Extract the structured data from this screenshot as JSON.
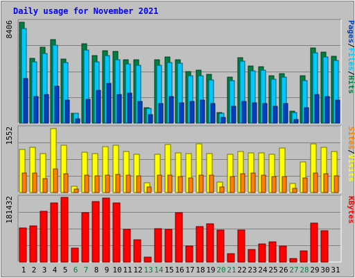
{
  "chart_data": {
    "type": "bar",
    "title": "Daily usage for November 2021",
    "categories": [
      "1",
      "2",
      "3",
      "4",
      "5",
      "6",
      "7",
      "8",
      "9",
      "10",
      "11",
      "12",
      "13",
      "14",
      "15",
      "16",
      "17",
      "18",
      "19",
      "20",
      "21",
      "22",
      "23",
      "24",
      "25",
      "26",
      "27",
      "28",
      "29",
      "30",
      "31"
    ],
    "weekend_days": [
      "6",
      "7",
      "13",
      "14",
      "20",
      "21",
      "27",
      "28"
    ],
    "panels": [
      {
        "id": "hits-files-pages",
        "max_label": "8406",
        "ymax": 8406,
        "right_label": [
          "Pages",
          "/",
          "Files",
          "/",
          "Hits"
        ],
        "series": [
          {
            "name": "Hits",
            "color": "#008040",
            "values": [
              8400,
              5400,
              6300,
              6950,
              5350,
              820,
              6600,
              5600,
              6050,
              5950,
              5250,
              5250,
              1300,
              5250,
              5500,
              5300,
              4300,
              4400,
              4050,
              870,
              3850,
              5450,
              4750,
              4700,
              3950,
              4100,
              960,
              3950,
              6250,
              5900,
              5550
            ]
          },
          {
            "name": "Files",
            "color": "#00c8ff",
            "values": [
              7900,
              5100,
              5800,
              6500,
              5050,
              820,
              6100,
              5100,
              5600,
              5300,
              4900,
              4800,
              1200,
              4800,
              5050,
              5000,
              3950,
              3950,
              3600,
              800,
              3550,
              5150,
              4350,
              4400,
              3650,
              3800,
              860,
              3550,
              5850,
              5500,
              5200
            ]
          },
          {
            "name": "Pages",
            "color": "#0040c0",
            "values": [
              3700,
              2200,
              2400,
              3100,
              1900,
              330,
              2000,
              2700,
              3300,
              2400,
              2500,
              1800,
              700,
              1600,
              2200,
              1700,
              1800,
              1900,
              1600,
              450,
              1400,
              1800,
              1700,
              1600,
              1400,
              1600,
              300,
              1300,
              2400,
              2200,
              1900
            ]
          }
        ]
      },
      {
        "id": "visits-sites",
        "max_label": "1552",
        "ymax": 1552,
        "right_label": [
          "Sites",
          "/",
          "Visits"
        ],
        "series": [
          {
            "name": "Visits",
            "color": "#ffff00",
            "values": [
              1050,
              1100,
              950,
              1550,
              1150,
              150,
              970,
              940,
              1110,
              1140,
              990,
              930,
              240,
              920,
              1160,
              960,
              950,
              1180,
              940,
              250,
              930,
              990,
              960,
              960,
              930,
              1080,
              220,
              750,
              1180,
              1100,
              1000
            ]
          },
          {
            "name": "Sites",
            "color": "#ff8000",
            "values": [
              470,
              480,
              340,
              580,
              460,
              80,
              420,
              410,
              430,
              440,
              420,
              400,
              130,
              420,
              430,
              380,
              360,
              420,
              430,
              140,
              380,
              460,
              470,
              430,
              390,
              390,
              100,
              350,
              470,
              450,
              400
            ]
          }
        ]
      },
      {
        "id": "kbytes",
        "max_label": "181432",
        "ymax": 181432,
        "right_label": [
          "KBytes"
        ],
        "series": [
          {
            "name": "KBytes",
            "color": "#ff0000",
            "values": [
              97000,
              103000,
              144000,
              168000,
              183000,
              40000,
              140000,
              171000,
              181432,
              168000,
              93000,
              63000,
              14000,
              95000,
              93000,
              140000,
              45000,
              101000,
              109000,
              91000,
              23000,
              91000,
              36000,
              52000,
              57000,
              45000,
              9500,
              32000,
              110000,
              89000,
              0
            ]
          }
        ]
      }
    ],
    "colors": {
      "background": "#c0c0c0",
      "title": "#0000ff",
      "day_label": "#000000",
      "weekend_label": "#008040",
      "gridline": "#808080",
      "slash": "#000000"
    }
  }
}
